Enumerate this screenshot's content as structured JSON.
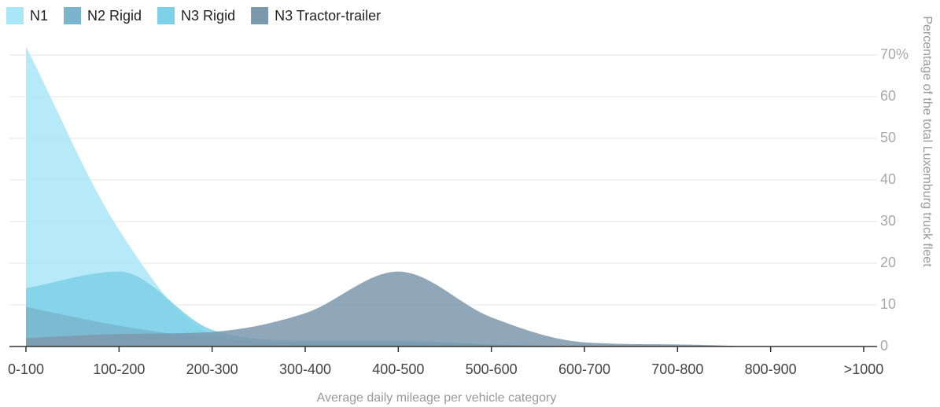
{
  "chart_data": {
    "type": "area",
    "x_label": "Average daily mileage per vehicle category",
    "y_label": "Percentage of the total Luxemburg truck fleet",
    "y_axis_position": "right",
    "grid": true,
    "categories": [
      "0-100",
      "100-200",
      "200-300",
      "300-400",
      "400-500",
      "500-600",
      "600-700",
      "700-800",
      "800-900",
      ">1000"
    ],
    "ylim": [
      0,
      70
    ],
    "yticks": [
      0,
      10,
      20,
      30,
      40,
      50,
      60,
      {
        "value": 70,
        "label": "70%"
      }
    ],
    "series": [
      {
        "name": "N1",
        "color": "#a9e6f7",
        "values": [
          72,
          28,
          3,
          0.5,
          0,
          0,
          0,
          0,
          0,
          0
        ]
      },
      {
        "name": "N2 Rigid",
        "color": "#7ab5cc",
        "values": [
          9.5,
          5,
          2,
          1,
          1,
          0.5,
          0,
          0,
          0,
          0
        ]
      },
      {
        "name": "N3 Rigid",
        "color": "#7cd0e8",
        "values": [
          14,
          18,
          4,
          1.5,
          1.5,
          0.5,
          0,
          0,
          0,
          0
        ]
      },
      {
        "name": "N3 Tractor-trailer",
        "color": "#7c98ad",
        "values": [
          2,
          3,
          3.5,
          8,
          18,
          7,
          1,
          0.5,
          0,
          0
        ]
      }
    ]
  }
}
